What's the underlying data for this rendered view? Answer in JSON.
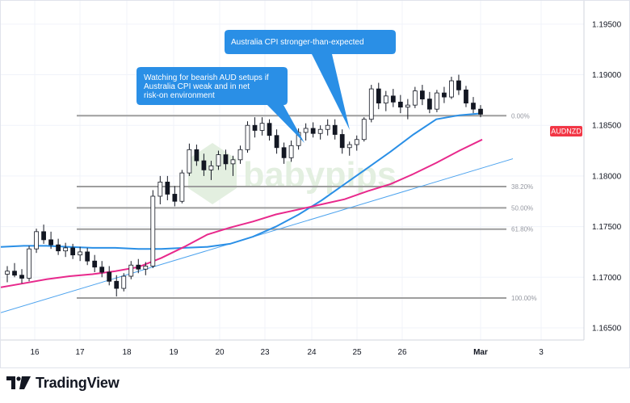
{
  "chart_data": {
    "type": "candlestick",
    "symbol": "AUDNZD",
    "ylim": [
      1.1638,
      1.1973
    ],
    "y_ticks": [
      "1.19500",
      "1.19000",
      "1.18500",
      "1.18000",
      "1.17500",
      "1.17000",
      "1.16500"
    ],
    "x_ticks": [
      "16",
      "17",
      "18",
      "19",
      "20",
      "23",
      "24",
      "25",
      "26",
      "Mar",
      "3"
    ],
    "last_price_label": "AUDNZD",
    "fib_levels": [
      {
        "label": "0.00%",
        "value": 1.18595
      },
      {
        "label": "38.20%",
        "value": 1.17895
      },
      {
        "label": "50.00%",
        "value": 1.17685
      },
      {
        "label": "61.80%",
        "value": 1.17475
      },
      {
        "label": "100.00%",
        "value": 1.16795
      }
    ],
    "annotations": [
      {
        "lines": [
          "Australia CPI stronger-than-expected"
        ]
      },
      {
        "lines": [
          "Watching for bearish AUD setups if",
          "Australia CPI weak and in net",
          "risk-on environment"
        ]
      }
    ],
    "candles": [
      [
        1.1703,
        1.1711,
        1.1695,
        1.1706
      ],
      [
        1.1706,
        1.1714,
        1.17,
        1.1702
      ],
      [
        1.1702,
        1.1708,
        1.1694,
        1.1699
      ],
      [
        1.1699,
        1.1731,
        1.1696,
        1.1728
      ],
      [
        1.1728,
        1.1748,
        1.1724,
        1.1745
      ],
      [
        1.1745,
        1.1752,
        1.1733,
        1.1737
      ],
      [
        1.1737,
        1.1745,
        1.1728,
        1.1732
      ],
      [
        1.1732,
        1.1738,
        1.1722,
        1.1726
      ],
      [
        1.1726,
        1.1734,
        1.172,
        1.1729
      ],
      [
        1.1729,
        1.1733,
        1.1718,
        1.1722
      ],
      [
        1.1722,
        1.173,
        1.1716,
        1.1725
      ],
      [
        1.1725,
        1.1729,
        1.1712,
        1.1716
      ],
      [
        1.1716,
        1.1722,
        1.1705,
        1.171
      ],
      [
        1.171,
        1.1716,
        1.17,
        1.1705
      ],
      [
        1.1705,
        1.1711,
        1.1692,
        1.1696
      ],
      [
        1.1696,
        1.1702,
        1.1681,
        1.1689
      ],
      [
        1.1689,
        1.1704,
        1.1686,
        1.1701
      ],
      [
        1.1701,
        1.1716,
        1.1698,
        1.1712
      ],
      [
        1.1712,
        1.1718,
        1.1704,
        1.1708
      ],
      [
        1.1708,
        1.1715,
        1.1702,
        1.1711
      ],
      [
        1.1711,
        1.1786,
        1.1709,
        1.178
      ],
      [
        1.178,
        1.18,
        1.1772,
        1.1794
      ],
      [
        1.1794,
        1.18,
        1.1776,
        1.1782
      ],
      [
        1.1782,
        1.179,
        1.177,
        1.1775
      ],
      [
        1.1775,
        1.1806,
        1.1773,
        1.1803
      ],
      [
        1.1803,
        1.1832,
        1.18,
        1.1826
      ],
      [
        1.1826,
        1.1831,
        1.181,
        1.1815
      ],
      [
        1.1815,
        1.1822,
        1.18,
        1.1806
      ],
      [
        1.1806,
        1.1815,
        1.1796,
        1.181
      ],
      [
        1.181,
        1.1825,
        1.1806,
        1.1821
      ],
      [
        1.1821,
        1.1826,
        1.1806,
        1.1812
      ],
      [
        1.1812,
        1.182,
        1.18,
        1.1816
      ],
      [
        1.1816,
        1.183,
        1.1812,
        1.1826
      ],
      [
        1.1826,
        1.1854,
        1.1823,
        1.185
      ],
      [
        1.185,
        1.1858,
        1.1838,
        1.1845
      ],
      [
        1.1845,
        1.1858,
        1.184,
        1.1852
      ],
      [
        1.1852,
        1.1856,
        1.1835,
        1.184
      ],
      [
        1.184,
        1.1846,
        1.1822,
        1.1828
      ],
      [
        1.1828,
        1.1833,
        1.1812,
        1.1818
      ],
      [
        1.1818,
        1.1835,
        1.1814,
        1.183
      ],
      [
        1.183,
        1.1847,
        1.1826,
        1.1843
      ],
      [
        1.1843,
        1.1852,
        1.1835,
        1.1847
      ],
      [
        1.1847,
        1.1853,
        1.1838,
        1.1842
      ],
      [
        1.1842,
        1.185,
        1.1836,
        1.1846
      ],
      [
        1.1846,
        1.1856,
        1.184,
        1.185
      ],
      [
        1.185,
        1.1856,
        1.1836,
        1.1841
      ],
      [
        1.1841,
        1.1846,
        1.1822,
        1.1828
      ],
      [
        1.1828,
        1.1834,
        1.182,
        1.1831
      ],
      [
        1.1831,
        1.184,
        1.1825,
        1.1836
      ],
      [
        1.1836,
        1.1858,
        1.1834,
        1.1856
      ],
      [
        1.1856,
        1.189,
        1.1853,
        1.1886
      ],
      [
        1.1886,
        1.1892,
        1.1866,
        1.1872
      ],
      [
        1.1872,
        1.1884,
        1.1864,
        1.1879
      ],
      [
        1.1879,
        1.1886,
        1.1868,
        1.1873
      ],
      [
        1.1873,
        1.188,
        1.1862,
        1.1868
      ],
      [
        1.1868,
        1.1876,
        1.1856,
        1.187
      ],
      [
        1.187,
        1.1888,
        1.1867,
        1.1884
      ],
      [
        1.1884,
        1.189,
        1.187,
        1.1876
      ],
      [
        1.1876,
        1.1883,
        1.1862,
        1.1866
      ],
      [
        1.1866,
        1.1885,
        1.1863,
        1.1882
      ],
      [
        1.1882,
        1.1888,
        1.1872,
        1.1878
      ],
      [
        1.1878,
        1.1898,
        1.1876,
        1.1894
      ],
      [
        1.1894,
        1.19,
        1.188,
        1.1885
      ],
      [
        1.1885,
        1.1889,
        1.1868,
        1.1872
      ],
      [
        1.1872,
        1.1878,
        1.1862,
        1.1866
      ],
      [
        1.1866,
        1.187,
        1.1858,
        1.1861
      ]
    ],
    "moving_averages": [
      {
        "color": "#2a8fe6",
        "values": [
          1.173,
          1.1731,
          1.1731,
          1.173,
          1.1729,
          1.1729,
          1.1728,
          1.1728,
          1.1729,
          1.173,
          1.1733,
          1.174,
          1.175,
          1.1762,
          1.1776,
          1.1792,
          1.1808,
          1.1824,
          1.1841,
          1.1856,
          1.186,
          1.1862
        ]
      },
      {
        "color": "#e8298c",
        "values": [
          1.169,
          1.1694,
          1.1698,
          1.1701,
          1.1703,
          1.1706,
          1.171,
          1.1719,
          1.173,
          1.1742,
          1.1749,
          1.1755,
          1.1762,
          1.1767,
          1.1772,
          1.1777,
          1.1785,
          1.1792,
          1.1802,
          1.1813,
          1.1825,
          1.1836
        ]
      }
    ],
    "trendline": {
      "color": "#4da3ee",
      "values": [
        1.1665,
        1.1817
      ]
    }
  }
}
